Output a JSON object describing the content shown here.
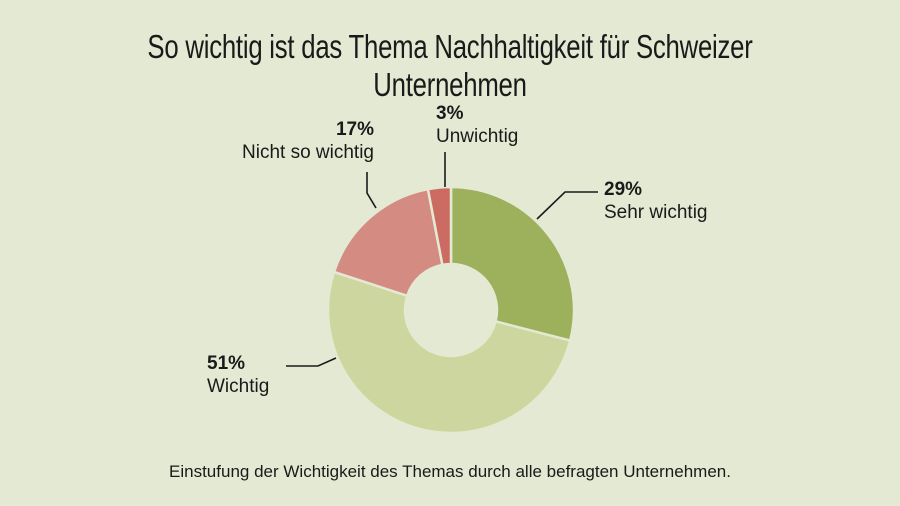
{
  "chart_data": {
    "type": "pie",
    "donut": true,
    "title": "So wichtig ist das Thema Nachhaltigkeit für Schweizer Unternehmen",
    "caption": "Einstufung der Wichtigkeit des Themas durch alle befragten Unternehmen.",
    "slices": [
      {
        "label": "Sehr wichtig",
        "value": 29,
        "value_label": "29%",
        "color": "#9db05c"
      },
      {
        "label": "Wichtig",
        "value": 51,
        "value_label": "51%",
        "color": "#cdd69e"
      },
      {
        "label": "Nicht so wichtig",
        "value": 17,
        "value_label": "17%",
        "color": "#d48c82"
      },
      {
        "label": "Unwichtig",
        "value": 3,
        "value_label": "3%",
        "color": "#cc6b62"
      }
    ],
    "background": "#e3e9d3"
  }
}
